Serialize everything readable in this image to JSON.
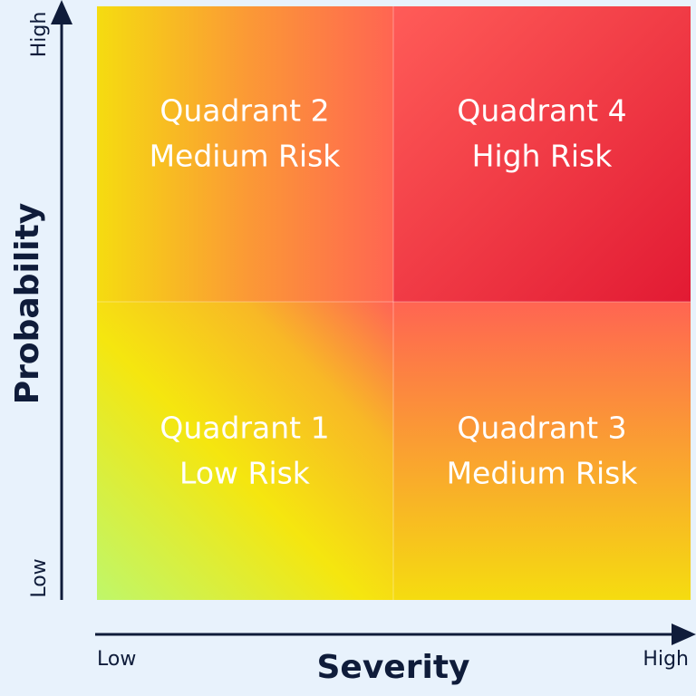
{
  "y_axis": {
    "title": "Probability",
    "low": "Low",
    "high": "High"
  },
  "x_axis": {
    "title": "Severity",
    "low": "Low",
    "high": "High"
  },
  "quadrants": [
    {
      "title": "Quadrant 1",
      "risk": "Low Risk"
    },
    {
      "title": "Quadrant 2",
      "risk": "Medium Risk"
    },
    {
      "title": "Quadrant 3",
      "risk": "Medium Risk"
    },
    {
      "title": "Quadrant 4",
      "risk": "High Risk"
    }
  ]
}
